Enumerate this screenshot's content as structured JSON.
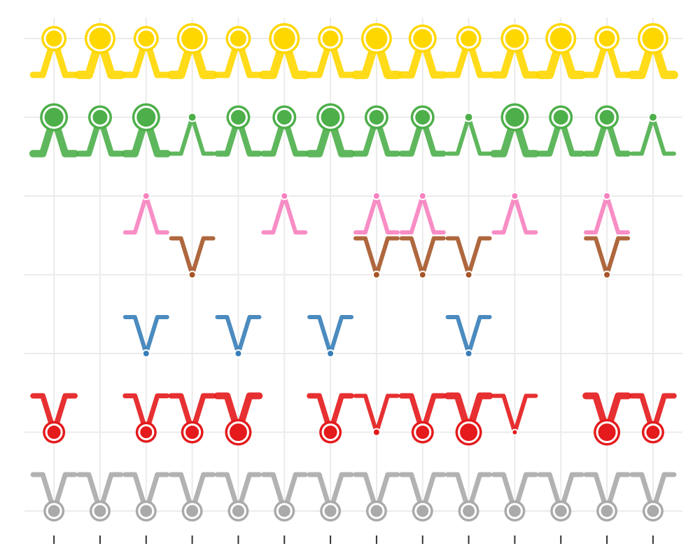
{
  "chart_data": {
    "type": "scatter",
    "xlim": [
      0.36,
      14.64
    ],
    "ylim": [
      0.6,
      7.4
    ],
    "xticks": [
      1,
      2,
      3,
      4,
      5,
      6,
      7,
      8,
      9,
      10,
      11,
      12,
      13,
      14
    ],
    "yticks": [
      1,
      2,
      3,
      4,
      5,
      6,
      7
    ],
    "grid": true,
    "series": [
      {
        "color": "#aaaaaa",
        "x": [
          1,
          2,
          3,
          4,
          5,
          6,
          7,
          8,
          9,
          10,
          11,
          12,
          13,
          14
        ],
        "values": [
          1,
          1,
          1,
          1,
          1,
          1,
          1,
          1,
          1,
          1,
          1,
          1,
          1,
          1
        ],
        "sizes": [
          10,
          10,
          10,
          10,
          10,
          10,
          10,
          10,
          10,
          10,
          10,
          10,
          10,
          10
        ]
      },
      {
        "color": "#e41a1c",
        "x": [
          1,
          3,
          4,
          5,
          7,
          8,
          9,
          10,
          11,
          13,
          14
        ],
        "values": [
          2,
          2,
          2,
          2,
          2,
          2,
          2,
          2,
          2,
          2,
          2
        ],
        "sizes": [
          11,
          10,
          11,
          14,
          11,
          5,
          11,
          14,
          4,
          14,
          11
        ]
      },
      {
        "color": "#377eb8",
        "x": [
          3,
          5,
          7,
          10
        ],
        "values": [
          3,
          3,
          3,
          3
        ],
        "sizes": [
          5,
          5,
          5,
          5
        ]
      },
      {
        "color": "#a65628",
        "x": [
          4,
          8,
          9,
          10,
          13
        ],
        "values": [
          4,
          4,
          4,
          4,
          4
        ],
        "sizes": [
          5,
          5,
          5,
          5,
          5
        ]
      },
      {
        "color": "#f781bf",
        "x": [
          3,
          6,
          8,
          9,
          11,
          13
        ],
        "values": [
          5,
          5,
          5,
          5,
          5,
          5
        ],
        "sizes": [
          5,
          5,
          5,
          5,
          5,
          5
        ]
      },
      {
        "color": "#4daf4a",
        "x": [
          1,
          2,
          3,
          4,
          5,
          6,
          7,
          8,
          9,
          10,
          11,
          12,
          13,
          14
        ],
        "values": [
          6,
          6,
          6,
          6,
          6,
          6,
          6,
          6,
          6,
          6,
          6,
          6,
          6,
          6
        ],
        "sizes": [
          15,
          12,
          15,
          6,
          12,
          12,
          15,
          12,
          12,
          6,
          15,
          12,
          12,
          6
        ]
      },
      {
        "color": "#ffd700",
        "x": [
          1,
          2,
          3,
          4,
          5,
          6,
          7,
          8,
          9,
          10,
          11,
          12,
          13,
          14
        ],
        "values": [
          7,
          7,
          7,
          7,
          7,
          7,
          7,
          7,
          7,
          7,
          7,
          7,
          7,
          7
        ],
        "sizes": [
          13,
          17,
          13,
          17,
          13,
          17,
          13,
          17,
          15,
          13,
          15,
          17,
          13,
          17
        ]
      }
    ]
  }
}
